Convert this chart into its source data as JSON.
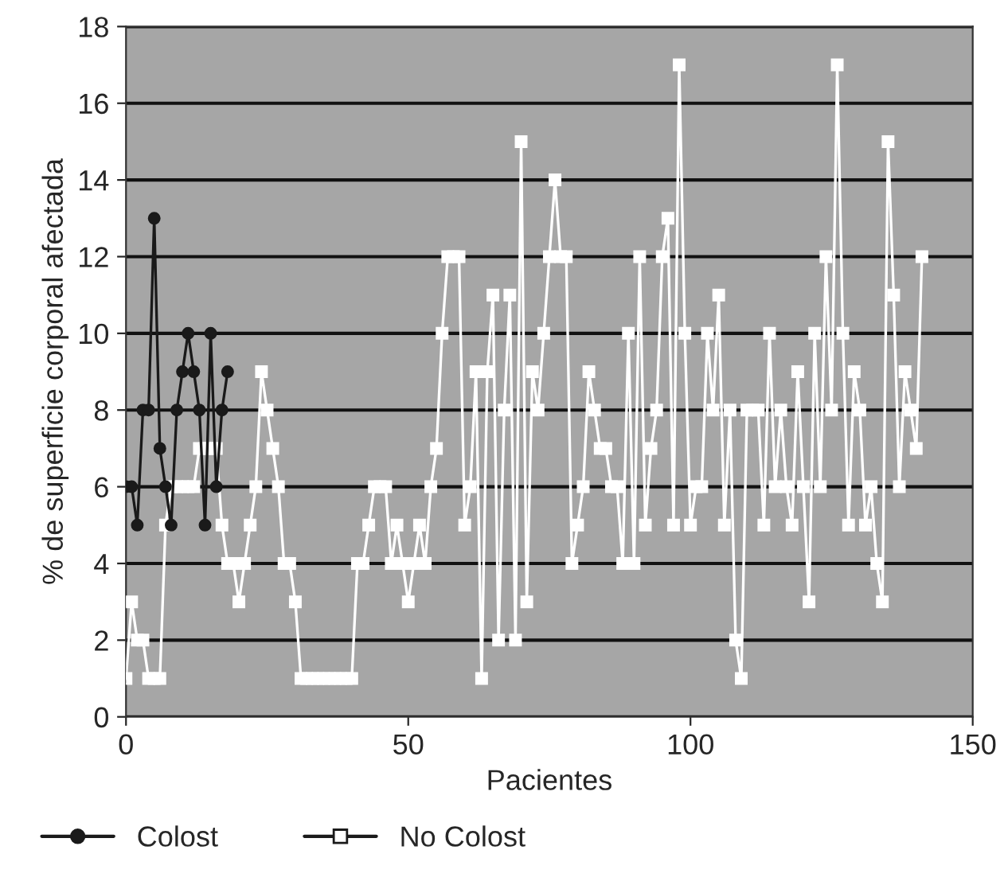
{
  "chart_data": {
    "type": "line",
    "xlabel": "Pacientes",
    "ylabel": "% de superficie corporal afectada",
    "xlim": [
      0,
      150
    ],
    "xticks": [
      0,
      50,
      100,
      150
    ],
    "ylim": [
      0,
      18
    ],
    "yticks": [
      0,
      2,
      4,
      6,
      8,
      10,
      12,
      14,
      16,
      18
    ],
    "grid": "y",
    "legend": "bottom left",
    "series": [
      {
        "name": "Colost",
        "color": "#1a1a1a",
        "marker": "circle",
        "x": [
          0,
          1,
          2,
          3,
          4,
          5,
          6,
          7,
          8,
          9,
          10,
          11,
          12,
          13,
          14,
          15,
          16,
          17,
          18
        ],
        "values": [
          6,
          6,
          5,
          8,
          8,
          13,
          7,
          6,
          5,
          8,
          9,
          10,
          9,
          8,
          5,
          10,
          6,
          8,
          9
        ]
      },
      {
        "name": "No Colost",
        "color": "#ffffff",
        "marker": "square",
        "x": [
          0,
          1,
          2,
          3,
          4,
          5,
          6,
          7,
          8,
          9,
          10,
          11,
          12,
          13,
          14,
          15,
          16,
          17,
          18,
          19,
          20,
          21,
          22,
          23,
          24,
          25,
          26,
          27,
          28,
          29,
          30,
          31,
          32,
          33,
          34,
          35,
          36,
          37,
          38,
          39,
          40,
          41,
          42,
          43,
          44,
          45,
          46,
          47,
          48,
          49,
          50,
          51,
          52,
          53,
          54,
          55,
          56,
          57,
          58,
          59,
          60,
          61,
          62,
          63,
          64,
          65,
          66,
          67,
          68,
          69,
          70,
          71,
          72,
          73,
          74,
          75,
          76,
          77,
          78,
          79,
          80,
          81,
          82,
          83,
          84,
          85,
          86,
          87,
          88,
          89,
          90,
          91,
          92,
          93,
          94,
          95,
          96,
          97,
          98,
          99,
          100,
          101,
          102,
          103,
          104,
          105,
          106,
          107,
          108,
          109,
          110,
          111,
          112,
          113,
          114,
          115,
          116,
          117,
          118,
          119,
          120,
          121,
          122,
          123,
          124,
          125,
          126,
          127,
          128,
          129,
          130,
          131,
          132,
          133,
          134,
          135,
          136,
          137,
          138,
          139,
          140,
          141
        ],
        "values": [
          1,
          3,
          2,
          2,
          1,
          1,
          1,
          5,
          6,
          6,
          6,
          6,
          6,
          7,
          7,
          7,
          7,
          5,
          4,
          4,
          3,
          4,
          5,
          6,
          9,
          8,
          7,
          6,
          4,
          4,
          3,
          1,
          1,
          1,
          1,
          1,
          1,
          1,
          1,
          1,
          1,
          4,
          4,
          5,
          6,
          6,
          6,
          4,
          5,
          4,
          3,
          4,
          5,
          4,
          6,
          7,
          10,
          12,
          12,
          12,
          5,
          6,
          9,
          1,
          9,
          11,
          2,
          8,
          11,
          2,
          15,
          3,
          9,
          8,
          10,
          12,
          14,
          12,
          12,
          4,
          5,
          6,
          9,
          8,
          7,
          7,
          6,
          6,
          4,
          10,
          4,
          12,
          5,
          7,
          8,
          12,
          13,
          5,
          17,
          10,
          5,
          6,
          6,
          10,
          8,
          11,
          5,
          8,
          2,
          1,
          8,
          8,
          8,
          5,
          10,
          6,
          8,
          6,
          5,
          9,
          6,
          3,
          10,
          6,
          12,
          8,
          17,
          10,
          5,
          9,
          8,
          5,
          6,
          4,
          3,
          15,
          11,
          6,
          9,
          8,
          7,
          12
        ]
      }
    ]
  }
}
